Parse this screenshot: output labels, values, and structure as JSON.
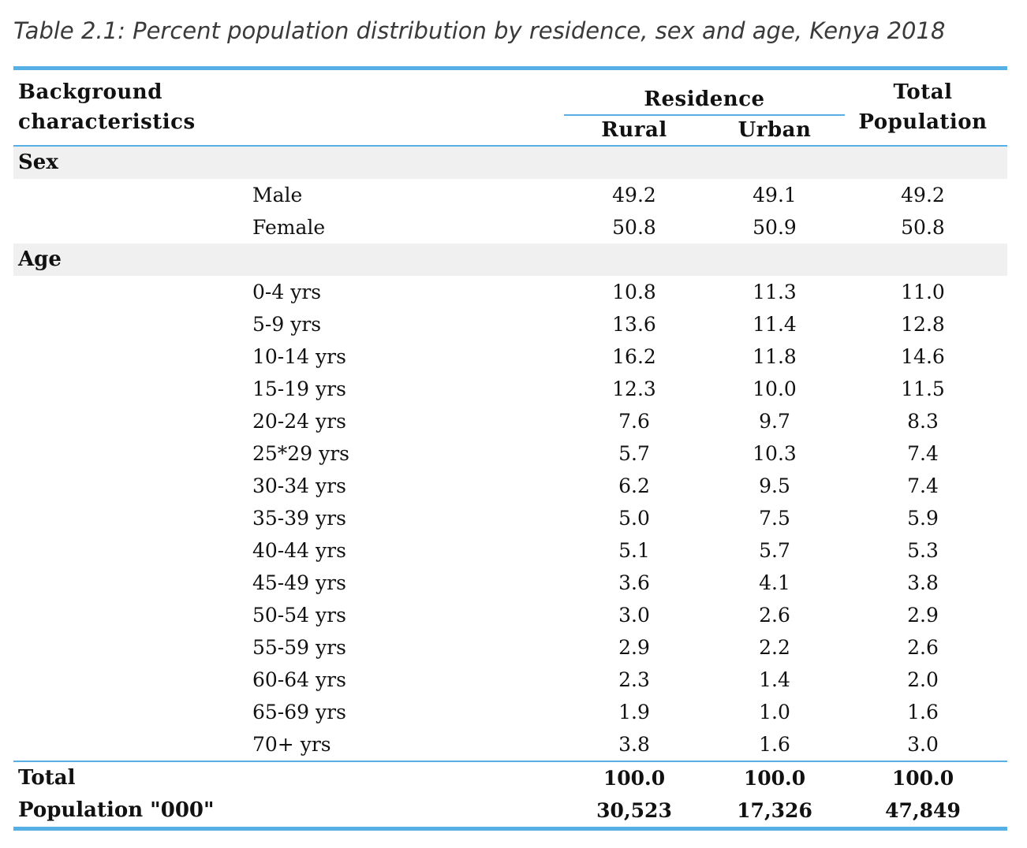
{
  "caption": "Table 2.1: Percent population distribution by residence, sex and age, Kenya 2018",
  "header": {
    "background_line1": "Background",
    "background_line2": "characteristics",
    "residence": "Residence",
    "rural": "Rural",
    "urban": "Urban",
    "total_line1": "Total",
    "total_line2": "Population"
  },
  "sections": {
    "sex": {
      "title": "Sex",
      "rows": [
        {
          "label": "Male",
          "rural": "49.2",
          "urban": "49.1",
          "total": "49.2"
        },
        {
          "label": "Female",
          "rural": "50.8",
          "urban": "50.9",
          "total": "50.8"
        }
      ]
    },
    "age": {
      "title": "Age",
      "rows": [
        {
          "label": "0-4 yrs",
          "rural": "10.8",
          "urban": "11.3",
          "total": "11.0"
        },
        {
          "label": "5-9 yrs",
          "rural": "13.6",
          "urban": "11.4",
          "total": "12.8"
        },
        {
          "label": "10-14 yrs",
          "rural": "16.2",
          "urban": "11.8",
          "total": "14.6"
        },
        {
          "label": "15-19 yrs",
          "rural": "12.3",
          "urban": "10.0",
          "total": "11.5"
        },
        {
          "label": "20-24 yrs",
          "rural": "7.6",
          "urban": "9.7",
          "total": "8.3"
        },
        {
          "label": "25*29 yrs",
          "rural": "5.7",
          "urban": "10.3",
          "total": "7.4"
        },
        {
          "label": "30-34 yrs",
          "rural": "6.2",
          "urban": "9.5",
          "total": "7.4"
        },
        {
          "label": "35-39 yrs",
          "rural": "5.0",
          "urban": "7.5",
          "total": "5.9"
        },
        {
          "label": "40-44 yrs",
          "rural": "5.1",
          "urban": "5.7",
          "total": "5.3"
        },
        {
          "label": "45-49 yrs",
          "rural": "3.6",
          "urban": "4.1",
          "total": "3.8"
        },
        {
          "label": "50-54 yrs",
          "rural": "3.0",
          "urban": "2.6",
          "total": "2.9"
        },
        {
          "label": "55-59 yrs",
          "rural": "2.9",
          "urban": "2.2",
          "total": "2.6"
        },
        {
          "label": "60-64 yrs",
          "rural": "2.3",
          "urban": "1.4",
          "total": "2.0"
        },
        {
          "label": "65-69 yrs",
          "rural": "1.9",
          "urban": "1.0",
          "total": "1.6"
        },
        {
          "label": "70+ yrs",
          "rural": "3.8",
          "urban": "1.6",
          "total": "3.0"
        }
      ]
    }
  },
  "totals": [
    {
      "label": "Total",
      "rural": "100.0",
      "urban": "100.0",
      "total": "100.0"
    },
    {
      "label": "Population \"000\"",
      "rural": "30,523",
      "urban": "17,326",
      "total": "47,849"
    }
  ]
}
